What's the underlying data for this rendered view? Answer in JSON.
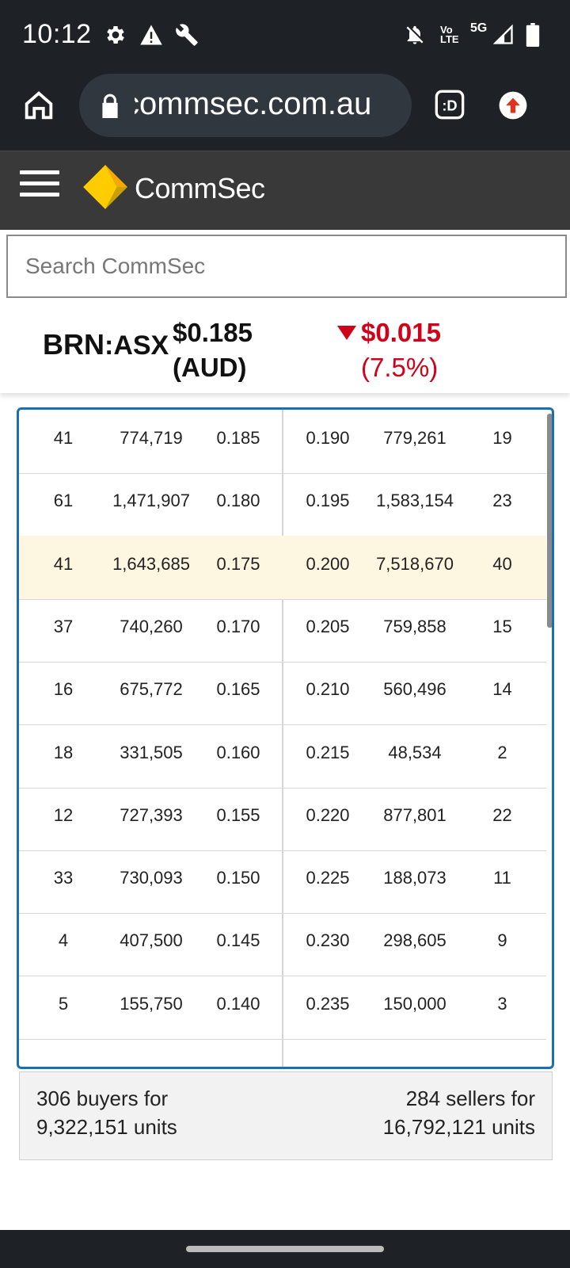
{
  "status_bar": {
    "time": "10:12",
    "left_icons": [
      "gear-icon",
      "warning-icon",
      "wrench-icon"
    ],
    "right_icons": [
      "notifications-off-icon",
      "volte-icon",
      "5g-icon",
      "signal-icon",
      "battery-icon"
    ],
    "volte_top": "Vo",
    "volte_bottom": "LTE",
    "network_label": "5G"
  },
  "browser": {
    "url": "commsec.com.au"
  },
  "site": {
    "brand_name": "CommSec"
  },
  "search": {
    "placeholder": "Search CommSec"
  },
  "quote": {
    "code": "BRN",
    "exchange": ":ASX",
    "price": "$0.185",
    "currency": "(AUD)",
    "change_amount": "$0.015",
    "change_percent": "(7.5%)",
    "change_direction": "down"
  },
  "depth": {
    "rows": [
      {
        "buy_count": "41",
        "buy_volume": "774,719",
        "buy_price": "0.185",
        "sell_price": "0.190",
        "sell_volume": "779,261",
        "sell_count": "19",
        "highlight": false
      },
      {
        "buy_count": "61",
        "buy_volume": "1,471,907",
        "buy_price": "0.180",
        "sell_price": "0.195",
        "sell_volume": "1,583,154",
        "sell_count": "23",
        "highlight": false
      },
      {
        "buy_count": "41",
        "buy_volume": "1,643,685",
        "buy_price": "0.175",
        "sell_price": "0.200",
        "sell_volume": "7,518,670",
        "sell_count": "40",
        "highlight": true
      },
      {
        "buy_count": "37",
        "buy_volume": "740,260",
        "buy_price": "0.170",
        "sell_price": "0.205",
        "sell_volume": "759,858",
        "sell_count": "15",
        "highlight": false
      },
      {
        "buy_count": "16",
        "buy_volume": "675,772",
        "buy_price": "0.165",
        "sell_price": "0.210",
        "sell_volume": "560,496",
        "sell_count": "14",
        "highlight": false
      },
      {
        "buy_count": "18",
        "buy_volume": "331,505",
        "buy_price": "0.160",
        "sell_price": "0.215",
        "sell_volume": "48,534",
        "sell_count": "2",
        "highlight": false
      },
      {
        "buy_count": "12",
        "buy_volume": "727,393",
        "buy_price": "0.155",
        "sell_price": "0.220",
        "sell_volume": "877,801",
        "sell_count": "22",
        "highlight": false
      },
      {
        "buy_count": "33",
        "buy_volume": "730,093",
        "buy_price": "0.150",
        "sell_price": "0.225",
        "sell_volume": "188,073",
        "sell_count": "11",
        "highlight": false
      },
      {
        "buy_count": "4",
        "buy_volume": "407,500",
        "buy_price": "0.145",
        "sell_price": "0.230",
        "sell_volume": "298,605",
        "sell_count": "9",
        "highlight": false
      },
      {
        "buy_count": "5",
        "buy_volume": "155,750",
        "buy_price": "0.140",
        "sell_price": "0.235",
        "sell_volume": "150,000",
        "sell_count": "3",
        "highlight": false
      }
    ]
  },
  "summary": {
    "buyers_line1": "306 buyers for",
    "buyers_line2": "9,322,151 units",
    "sellers_line1": "284 sellers for",
    "sellers_line2": "16,792,121 units"
  },
  "colors": {
    "negative": "#d0021b",
    "table_border": "#1a6fb0",
    "highlight_row": "#fdf6e0",
    "header_bg": "#393939",
    "brand_yellow": "#ffcc00"
  }
}
